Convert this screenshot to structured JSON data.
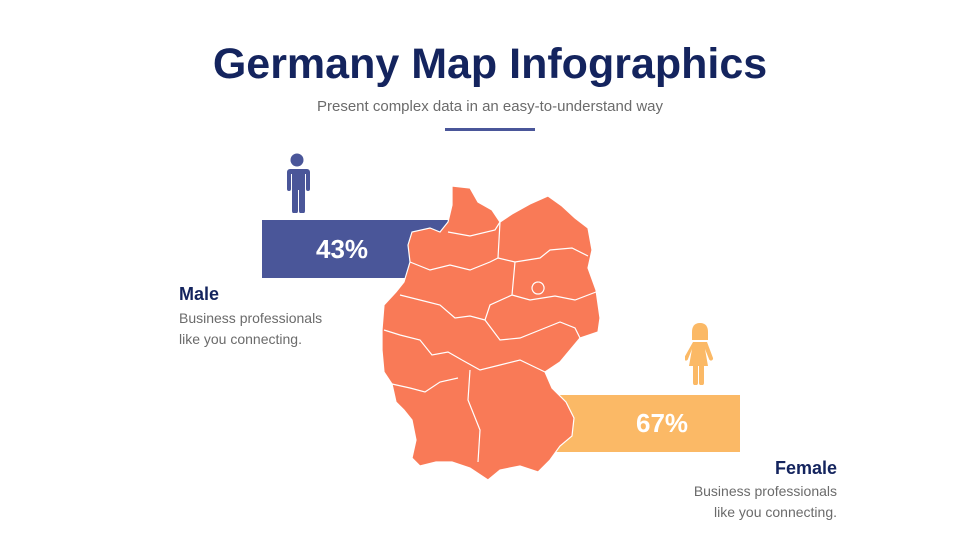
{
  "header": {
    "title": "Germany Map Infographics",
    "subtitle": "Present complex data in an easy-to-understand way"
  },
  "male": {
    "percent": "43%",
    "value": 43,
    "label": "Male",
    "desc_line1": "Business professionals",
    "desc_line2": "like you connecting.",
    "icon": "male-person-icon"
  },
  "female": {
    "percent": "67%",
    "value": 67,
    "label": "Female",
    "desc_line1": "Business professionals",
    "desc_line2": "like you connecting.",
    "icon": "female-person-icon"
  },
  "colors": {
    "title": "#14245e",
    "male": "#4a5699",
    "female": "#fbb966",
    "map": "#f97a57"
  }
}
